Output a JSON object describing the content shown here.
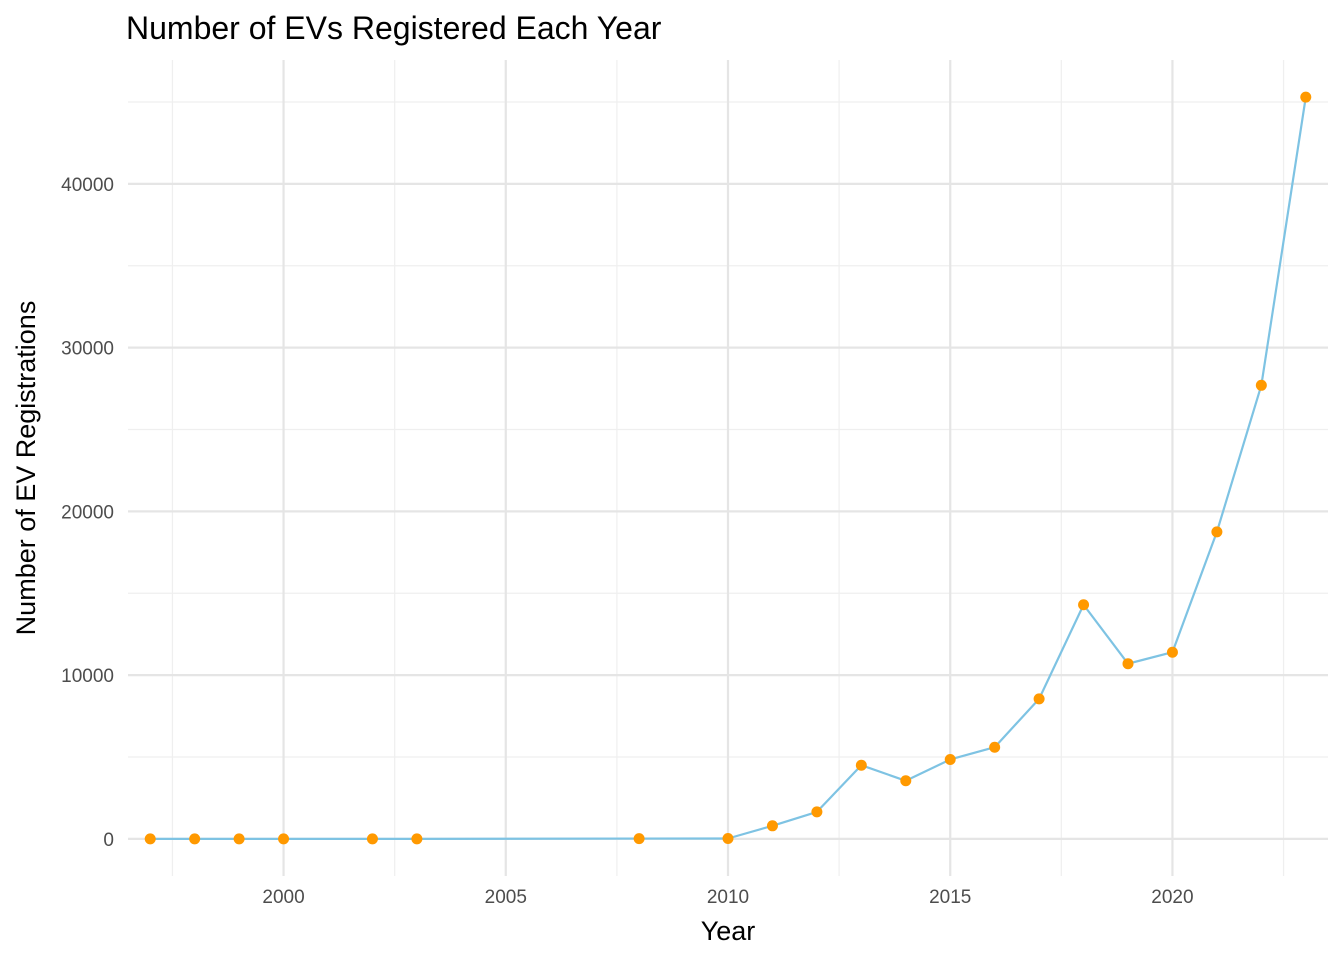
{
  "chart_data": {
    "type": "line",
    "title": "Number of EVs Registered Each Year",
    "xlabel": "Year",
    "ylabel": "Number of EV Registrations",
    "x": [
      1997,
      1998,
      1999,
      2000,
      2002,
      2003,
      2008,
      2010,
      2011,
      2012,
      2013,
      2014,
      2015,
      2016,
      2017,
      2018,
      2019,
      2020,
      2021,
      2022,
      2023
    ],
    "series": [
      {
        "values": [
          1,
          1,
          1,
          1,
          2,
          1,
          20,
          25,
          800,
          1650,
          4500,
          3550,
          4850,
          5600,
          8550,
          14300,
          10700,
          11400,
          18750,
          27700,
          45300
        ]
      }
    ],
    "xlim": [
      1996.5,
      2023.5
    ],
    "ylim": [
      -2265,
      47565
    ],
    "xticks": [
      2000,
      2005,
      2010,
      2015,
      2020
    ],
    "xtick_labels": [
      "2000",
      "2005",
      "2010",
      "2015",
      "2020"
    ],
    "yticks": [
      0,
      10000,
      20000,
      30000,
      40000
    ],
    "ytick_labels": [
      "0",
      "10000",
      "20000",
      "30000",
      "40000"
    ],
    "grid": true,
    "legend": "none",
    "colors": {
      "line": "#7ec3e3",
      "points": "#ff9900"
    }
  }
}
